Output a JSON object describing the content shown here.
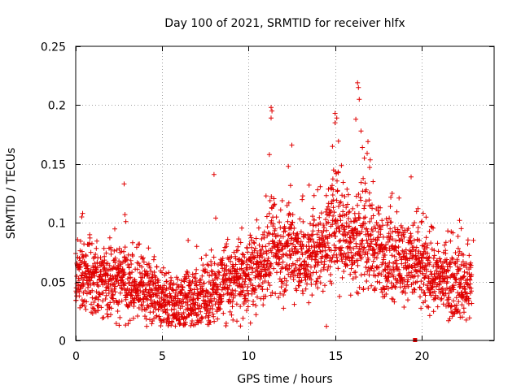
{
  "chart_data": {
    "type": "scatter",
    "title": "Day 100 of 2021, SRMTID for receiver hlfx",
    "xlabel": "GPS time / hours",
    "ylabel": "SRMTID / TECUs",
    "xlim": [
      0,
      24.2
    ],
    "ylim": [
      0,
      0.25
    ],
    "xticks": [
      0,
      5,
      10,
      15,
      20
    ],
    "xtick_labels": [
      "0",
      "5",
      "10",
      "15",
      "20"
    ],
    "yticks": [
      0,
      0.05,
      0.1,
      0.15,
      0.2,
      0.25
    ],
    "ytick_labels": [
      "0",
      "0.05",
      "0.1",
      "0.15",
      "0.2",
      "0.25"
    ],
    "grid": true,
    "marker": "plus",
    "color": "#e00000",
    "series": [
      {
        "name": "SRMTID",
        "trend": [
          [
            0.0,
            0.045
          ],
          [
            0.5,
            0.055
          ],
          [
            1.0,
            0.05
          ],
          [
            1.5,
            0.048
          ],
          [
            2.0,
            0.05
          ],
          [
            2.5,
            0.05
          ],
          [
            3.0,
            0.048
          ],
          [
            3.5,
            0.045
          ],
          [
            4.0,
            0.043
          ],
          [
            4.5,
            0.04
          ],
          [
            5.0,
            0.033
          ],
          [
            5.5,
            0.03
          ],
          [
            6.0,
            0.032
          ],
          [
            6.5,
            0.033
          ],
          [
            7.0,
            0.035
          ],
          [
            7.5,
            0.038
          ],
          [
            8.0,
            0.042
          ],
          [
            8.5,
            0.045
          ],
          [
            9.0,
            0.048
          ],
          [
            9.5,
            0.05
          ],
          [
            10.0,
            0.055
          ],
          [
            10.5,
            0.06
          ],
          [
            11.0,
            0.07
          ],
          [
            11.5,
            0.075
          ],
          [
            12.0,
            0.07
          ],
          [
            12.5,
            0.08
          ],
          [
            13.0,
            0.07
          ],
          [
            13.5,
            0.065
          ],
          [
            14.0,
            0.075
          ],
          [
            14.5,
            0.085
          ],
          [
            15.0,
            0.1
          ],
          [
            15.5,
            0.09
          ],
          [
            16.0,
            0.085
          ],
          [
            16.5,
            0.09
          ],
          [
            17.0,
            0.085
          ],
          [
            17.5,
            0.075
          ],
          [
            18.0,
            0.07
          ],
          [
            18.5,
            0.07
          ],
          [
            19.0,
            0.068
          ],
          [
            19.5,
            0.065
          ],
          [
            20.0,
            0.06
          ],
          [
            20.5,
            0.058
          ],
          [
            21.0,
            0.055
          ],
          [
            21.5,
            0.05
          ],
          [
            22.0,
            0.048
          ],
          [
            22.5,
            0.048
          ],
          [
            22.9,
            0.05
          ]
        ],
        "outliers": [
          [
            0.4,
            0.108
          ],
          [
            0.35,
            0.105
          ],
          [
            2.8,
            0.133
          ],
          [
            2.85,
            0.107
          ],
          [
            2.9,
            0.101
          ],
          [
            8.0,
            0.141
          ],
          [
            8.1,
            0.104
          ],
          [
            11.3,
            0.198
          ],
          [
            11.35,
            0.195
          ],
          [
            11.3,
            0.189
          ],
          [
            11.2,
            0.158
          ],
          [
            12.5,
            0.166
          ],
          [
            12.3,
            0.148
          ],
          [
            13.5,
            0.132
          ],
          [
            14.5,
            0.012
          ],
          [
            15.0,
            0.193
          ],
          [
            15.1,
            0.189
          ],
          [
            15.0,
            0.185
          ],
          [
            14.85,
            0.165
          ],
          [
            16.3,
            0.219
          ],
          [
            16.35,
            0.215
          ],
          [
            16.4,
            0.205
          ],
          [
            16.2,
            0.188
          ],
          [
            16.5,
            0.178
          ],
          [
            16.9,
            0.169
          ],
          [
            17.0,
            0.147
          ],
          [
            17.2,
            0.135
          ],
          [
            18.3,
            0.125
          ],
          [
            18.7,
            0.121
          ],
          [
            19.4,
            0.139
          ],
          [
            19.8,
            0.112
          ],
          [
            20.1,
            0.108
          ],
          [
            22.2,
            0.102
          ],
          [
            22.3,
            0.095
          ],
          [
            23.0,
            0.085
          ],
          [
            7.0,
            0.08
          ],
          [
            6.5,
            0.085
          ]
        ],
        "squares": [
          [
            19.6,
            0.0
          ],
          [
            19.65,
            0.0
          ]
        ]
      }
    ]
  }
}
